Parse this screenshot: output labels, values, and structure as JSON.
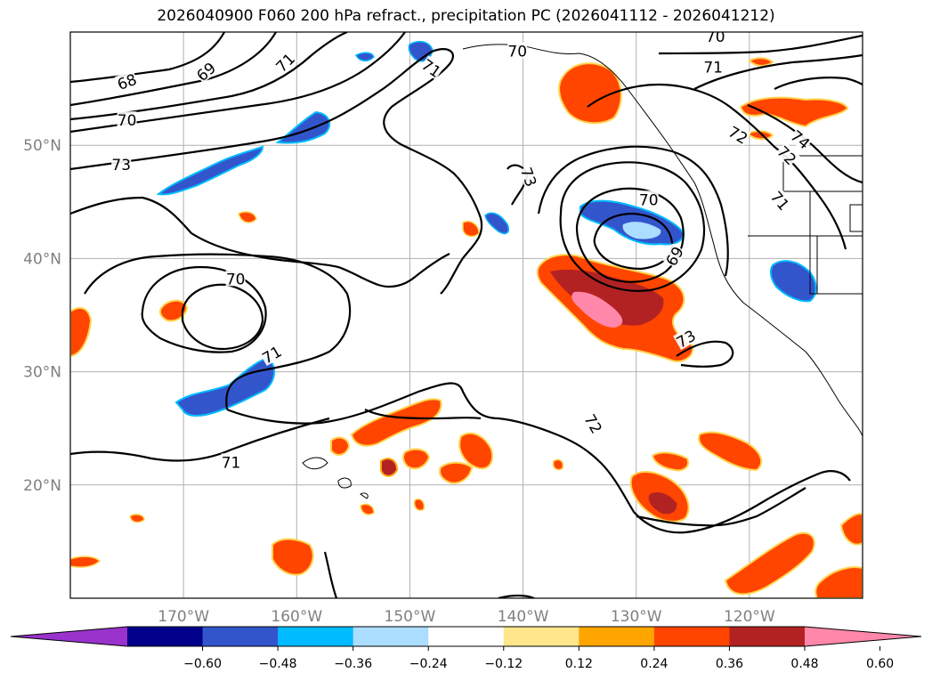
{
  "title": "2026040900 F060 200 hPa refract., precipitation PC (2026041112 - 2026041212)",
  "map": {
    "lon_range": [
      -180,
      -110
    ],
    "lat_range": [
      10,
      60
    ],
    "lat_labels": [
      {
        "lat": 50,
        "text": "50°N"
      },
      {
        "lat": 40,
        "text": "40°N"
      },
      {
        "lat": 30,
        "text": "30°N"
      },
      {
        "lat": 20,
        "text": "20°N"
      }
    ],
    "lon_labels": [
      {
        "lon": -170,
        "text": "170°W"
      },
      {
        "lon": -160,
        "text": "160°W"
      },
      {
        "lon": -150,
        "text": "150°W"
      },
      {
        "lon": -140,
        "text": "140°W"
      },
      {
        "lon": -130,
        "text": "130°W"
      },
      {
        "lon": -120,
        "text": "120°W"
      }
    ],
    "contour_labels": [
      {
        "text": "68",
        "lon": -175,
        "lat": 55.6,
        "rot": -20
      },
      {
        "text": "69",
        "lon": -168,
        "lat": 56.5,
        "rot": -40
      },
      {
        "text": "71",
        "lon": -161,
        "lat": 57.3,
        "rot": -45
      },
      {
        "text": "70",
        "lon": -175,
        "lat": 52.2,
        "rot": 0
      },
      {
        "text": "73",
        "lon": -175.5,
        "lat": 48.3,
        "rot": 0
      },
      {
        "text": "71",
        "lon": -148.1,
        "lat": 56.8,
        "rot": 35
      },
      {
        "text": "70",
        "lon": -140.5,
        "lat": 58.3,
        "rot": 0
      },
      {
        "text": "70",
        "lon": -123,
        "lat": 59.6,
        "rot": 0
      },
      {
        "text": "71",
        "lon": -123.2,
        "lat": 56.9,
        "rot": 0
      },
      {
        "text": "72",
        "lon": -121,
        "lat": 50.9,
        "rot": 30
      },
      {
        "text": "74",
        "lon": -115.5,
        "lat": 50.5,
        "rot": 40
      },
      {
        "text": "72",
        "lon": -116.7,
        "lat": 49.1,
        "rot": 45
      },
      {
        "text": "71",
        "lon": -117.3,
        "lat": 45.1,
        "rot": 50
      },
      {
        "text": "73",
        "lon": -139.5,
        "lat": 47.2,
        "rot": 70
      },
      {
        "text": "70",
        "lon": -128.9,
        "lat": 45.2,
        "rot": 0
      },
      {
        "text": "69",
        "lon": -126.6,
        "lat": 40.2,
        "rot": -60
      },
      {
        "text": "73",
        "lon": -125.6,
        "lat": 32.9,
        "rot": -30
      },
      {
        "text": "70",
        "lon": -165.4,
        "lat": 38.2,
        "rot": 0
      },
      {
        "text": "71",
        "lon": -162.2,
        "lat": 31.5,
        "rot": -30
      },
      {
        "text": "72",
        "lon": -133.8,
        "lat": 25.4,
        "rot": 60
      },
      {
        "text": "71",
        "lon": -165.8,
        "lat": 22.0,
        "rot": 0
      }
    ]
  },
  "colorbar": {
    "ticks": [
      "−0.60",
      "−0.48",
      "−0.36",
      "−0.24",
      "−0.12",
      "0.12",
      "0.24",
      "0.36",
      "0.48",
      "0.60"
    ],
    "colors": [
      "#9933cc",
      "#00008b",
      "#3355cc",
      "#00bbff",
      "#aaddff",
      "#ffffff",
      "#ffe68a",
      "#ffa500",
      "#ff4500",
      "#b22222",
      "#ff88aa"
    ]
  }
}
